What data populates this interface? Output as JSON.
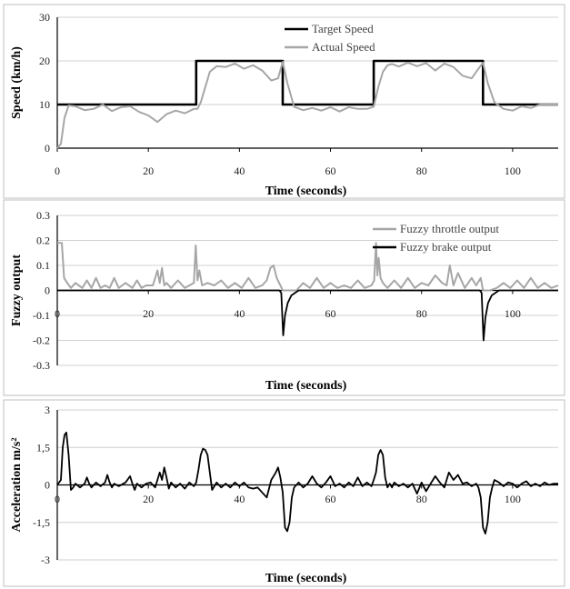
{
  "figure": {
    "colors": {
      "target": "#000000",
      "actual": "#a6a6a6",
      "throttle": "#a6a6a6",
      "brake": "#000000",
      "acceleration": "#000000"
    }
  },
  "chart_data": [
    {
      "type": "line",
      "xlabel": "Time (seconds)",
      "ylabel": "Speed (km/h)",
      "xlim": [
        0,
        110
      ],
      "ylim": [
        0,
        30
      ],
      "xticks": [
        0,
        20,
        40,
        60,
        80,
        100
      ],
      "yticks": [
        0,
        10,
        20,
        30
      ],
      "grid": "horizontal",
      "legend": "top-center",
      "series": [
        {
          "name": "Target Speed",
          "color": "#000000",
          "x": [
            0,
            30.5,
            30.5,
            49.5,
            49.5,
            69.5,
            69.5,
            93.5,
            93.5,
            110
          ],
          "y": [
            10,
            10,
            20,
            20,
            10,
            10,
            20,
            20,
            10,
            10
          ]
        },
        {
          "name": "Actual Speed",
          "color": "#a6a6a6",
          "x": [
            0,
            0.8,
            1.6,
            2.5,
            4,
            6,
            8,
            10,
            12,
            14,
            16,
            18,
            20,
            22,
            24,
            26,
            28,
            30,
            30.8,
            31.5,
            32.5,
            33.5,
            35,
            37,
            39,
            41,
            43,
            45,
            47,
            48.5,
            49.5,
            50.5,
            52,
            54,
            56,
            58,
            60,
            62,
            64,
            66,
            68,
            69.5,
            70.5,
            71.5,
            72.5,
            73.5,
            75,
            77,
            79,
            81,
            83,
            85,
            87,
            89,
            91,
            92.5,
            93.5,
            94.5,
            96,
            98,
            100,
            102,
            104,
            106,
            108,
            110
          ],
          "y": [
            0,
            1,
            7,
            9.8,
            9.6,
            8.7,
            9,
            10,
            8.5,
            9.4,
            9.6,
            8.3,
            7.5,
            6,
            7.8,
            8.6,
            8,
            9,
            9,
            10.5,
            14,
            17.5,
            18.8,
            18.6,
            19.4,
            18.2,
            19,
            17.8,
            15.5,
            16,
            19.8,
            15,
            9.5,
            8.7,
            9.2,
            8.6,
            9.4,
            8.4,
            9.4,
            9,
            9,
            9.5,
            14,
            17.5,
            19,
            19.3,
            18.7,
            19.6,
            18.8,
            19.5,
            17.8,
            19.4,
            18.6,
            16.6,
            16,
            18.2,
            19.6,
            15,
            10.5,
            9,
            8.6,
            9.6,
            9.2,
            10,
            10,
            10
          ]
        }
      ]
    },
    {
      "type": "line",
      "xlabel": "Time (seconds)",
      "ylabel": "Fuzzy output",
      "xlim": [
        0,
        110
      ],
      "ylim": [
        -0.3,
        0.3
      ],
      "xticks": [
        0,
        20,
        40,
        60,
        80,
        100
      ],
      "yticks": [
        0.3,
        0.2,
        0.1,
        0,
        -0.1,
        -0.2,
        -0.3
      ],
      "grid": "horizontal",
      "legend": "top-right",
      "series": [
        {
          "name": "Fuzzy throttle output",
          "color": "#a6a6a6",
          "x": [
            0,
            1,
            1.5,
            2.2,
            3,
            4,
            5.5,
            6.5,
            7.5,
            8.5,
            9.5,
            10.5,
            11.5,
            12.5,
            13.5,
            15,
            16.5,
            17.5,
            18.5,
            19.5,
            21,
            22,
            22.5,
            23,
            23.5,
            24,
            25,
            26.5,
            28,
            29,
            30,
            30.4,
            30.8,
            31.2,
            31.8,
            33,
            34.5,
            36,
            37.5,
            39,
            40.5,
            42,
            43.5,
            45,
            46,
            46.8,
            47.5,
            48.2,
            49,
            49.5,
            50,
            51,
            52.5,
            54,
            55.5,
            57,
            58.5,
            60,
            61.5,
            63,
            64.5,
            66,
            67.5,
            69,
            69.6,
            70,
            70.3,
            70.6,
            71,
            71.5,
            72.5,
            74,
            75.5,
            77,
            78.5,
            80,
            81.5,
            83,
            84.5,
            85.5,
            86.2,
            87,
            88,
            89.5,
            91,
            92,
            93,
            93.5,
            94,
            95,
            96.5,
            98,
            99.5,
            101,
            102.5,
            104,
            105.5,
            107,
            108.5,
            110
          ],
          "y": [
            0.19,
            0.19,
            0.05,
            0.03,
            0.01,
            0.03,
            0.01,
            0.04,
            0.01,
            0.05,
            0.01,
            0.02,
            0.01,
            0.05,
            0.01,
            0.03,
            0.01,
            0.04,
            0.01,
            0.02,
            0.02,
            0.08,
            0.03,
            0.09,
            0.02,
            0.03,
            0.01,
            0.04,
            0.01,
            0.02,
            0.03,
            0.18,
            0.04,
            0.08,
            0.02,
            0.03,
            0.02,
            0.04,
            0.01,
            0.03,
            0.01,
            0.05,
            0.01,
            0.02,
            0.04,
            0.09,
            0.1,
            0.05,
            0.02,
            0,
            0,
            0,
            0,
            0.03,
            0.01,
            0.05,
            0.01,
            0.03,
            0.01,
            0.02,
            0.01,
            0.04,
            0.01,
            0.02,
            0.04,
            0.19,
            0.06,
            0.13,
            0.05,
            0.03,
            0.01,
            0.04,
            0.01,
            0.05,
            0.01,
            0.03,
            0.02,
            0.06,
            0.03,
            0.02,
            0.1,
            0.02,
            0.07,
            0.01,
            0.05,
            0.02,
            0.05,
            0,
            0,
            0,
            0.01,
            0.03,
            0.01,
            0.04,
            0.01,
            0.05,
            0.01,
            0.03,
            0.01,
            0.02
          ]
        },
        {
          "name": "Fuzzy brake output",
          "color": "#000000",
          "x": [
            0,
            48.8,
            49.2,
            49.6,
            50,
            50.6,
            51.4,
            52.2,
            53,
            92.8,
            93.2,
            93.6,
            94,
            94.6,
            95.4,
            96.2,
            97,
            110
          ],
          "y": [
            0,
            0,
            -0.01,
            -0.18,
            -0.1,
            -0.05,
            -0.02,
            -0.01,
            0,
            0,
            -0.01,
            -0.2,
            -0.11,
            -0.05,
            -0.02,
            -0.01,
            0,
            0
          ]
        }
      ]
    },
    {
      "type": "line",
      "xlabel": "Time (seconds)",
      "ylabel": "Acceleration m/s²",
      "xlim": [
        0,
        110
      ],
      "ylim": [
        -3,
        3
      ],
      "xticks": [
        0,
        20,
        40,
        60,
        80,
        100
      ],
      "yticks": [
        3,
        1.5,
        0,
        -1.5,
        -3
      ],
      "ytick_labels": [
        "3",
        "1,5",
        "0",
        "-1,5",
        "-3"
      ],
      "grid": "horizontal",
      "series": [
        {
          "name": "",
          "color": "#000000",
          "x": [
            0,
            0.8,
            1.2,
            1.6,
            2,
            2.5,
            3,
            3.5,
            4,
            5,
            6,
            6.5,
            7,
            7.5,
            8.5,
            9.5,
            10.5,
            11,
            11.5,
            12,
            12.5,
            13.5,
            15,
            16,
            16.5,
            17,
            17.5,
            18.5,
            19.5,
            20.5,
            21.5,
            22.5,
            23,
            23.5,
            24,
            24.5,
            25,
            26,
            27,
            28,
            29,
            30,
            30.5,
            31,
            31.5,
            32,
            32.5,
            33,
            33.5,
            34,
            35,
            36,
            37,
            38,
            39,
            40,
            41,
            42,
            43,
            44,
            45,
            46,
            47,
            48,
            48.5,
            49,
            49.5,
            50,
            50.5,
            51,
            51.5,
            52,
            53,
            54,
            55,
            56,
            57,
            58,
            59,
            60,
            61,
            62,
            63,
            64,
            65,
            66,
            67,
            68,
            69,
            69.5,
            70,
            70.5,
            71,
            71.5,
            72,
            72.5,
            73,
            73.5,
            74,
            75,
            76,
            77,
            78,
            79,
            80,
            81,
            82,
            83,
            84,
            85,
            86,
            87,
            88,
            89,
            90,
            91,
            92,
            92.5,
            93,
            93.5,
            94,
            94.5,
            95,
            95.5,
            96,
            97,
            98,
            99,
            100,
            101,
            102,
            103,
            104,
            105,
            106,
            107,
            108,
            109,
            110
          ],
          "y": [
            0,
            0.2,
            1.5,
            2,
            2.1,
            1.2,
            -0.2,
            -0.1,
            0.05,
            -0.1,
            0.05,
            0.3,
            0.05,
            -0.1,
            0.1,
            -0.05,
            0.1,
            0.4,
            0.1,
            -0.1,
            0.05,
            -0.05,
            0.1,
            0.35,
            0.05,
            -0.2,
            0.05,
            -0.1,
            0.05,
            0.1,
            -0.1,
            0.5,
            0.2,
            0.7,
            0.3,
            -0.15,
            0.1,
            -0.1,
            0.05,
            -0.15,
            0.1,
            -0.05,
            0.1,
            0.6,
            1.2,
            1.45,
            1.4,
            1.2,
            0.5,
            -0.2,
            0.1,
            -0.1,
            0.05,
            -0.1,
            0.1,
            -0.05,
            0.1,
            -0.1,
            -0.15,
            -0.1,
            -0.3,
            -0.5,
            0.2,
            0.5,
            0.7,
            0.3,
            -0.3,
            -1.7,
            -1.85,
            -1.5,
            -0.5,
            -0.1,
            0.1,
            -0.1,
            0.05,
            0.35,
            0.05,
            -0.1,
            0.1,
            0.35,
            -0.05,
            0.05,
            -0.1,
            0.1,
            -0.05,
            0.3,
            -0.05,
            0.1,
            -0.05,
            0.2,
            0.5,
            1.2,
            1.4,
            1.2,
            0.3,
            -0.1,
            0.05,
            -0.1,
            0.1,
            -0.05,
            0.05,
            -0.1,
            0.05,
            -0.35,
            0.1,
            -0.25,
            0.05,
            0.35,
            0.1,
            -0.1,
            0.5,
            0.2,
            0.4,
            0.05,
            0.1,
            -0.05,
            0.05,
            -0.1,
            -0.5,
            -1.7,
            -1.95,
            -1.5,
            -0.5,
            -0.1,
            0.2,
            0.1,
            -0.05,
            0.1,
            0.05,
            -0.1,
            0.05,
            0.15,
            -0.05,
            0.05,
            -0.05,
            0.1,
            0,
            0.05,
            0.05
          ]
        }
      ]
    }
  ]
}
